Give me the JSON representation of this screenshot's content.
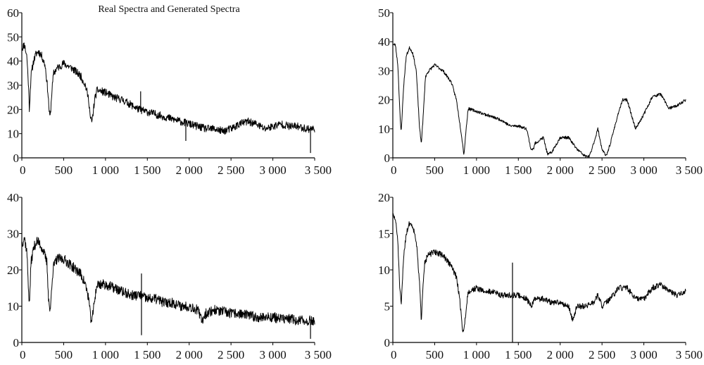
{
  "title": "Real Spectra and Generated Spectra",
  "chart_data": [
    {
      "type": "line",
      "panel": "top-left",
      "xlim": [
        0,
        3500
      ],
      "ylim": [
        0,
        60
      ],
      "xticks": [
        0,
        500,
        1000,
        1500,
        2000,
        2500,
        3000,
        3500
      ],
      "xtick_labels": [
        "0",
        "500",
        "1 000",
        "1 500",
        "2 000",
        "2 500",
        "3 000",
        "3 500"
      ],
      "yticks": [
        0,
        10,
        20,
        30,
        40,
        50,
        60
      ],
      "ytick_labels": [
        "0",
        "10",
        "20",
        "30",
        "40",
        "50",
        "60"
      ],
      "noise": 1.6,
      "seed": 11,
      "series": [
        {
          "name": "",
          "x": [
            0,
            30,
            60,
            80,
            90,
            110,
            140,
            170,
            200,
            240,
            280,
            310,
            330,
            340,
            360,
            380,
            420,
            500,
            600,
            700,
            760,
            800,
            820,
            840,
            870,
            900,
            1000,
            1100,
            1200,
            1300,
            1400,
            1500,
            1600,
            1700,
            1800,
            1900,
            2000,
            2100,
            2200,
            2300,
            2400,
            2500,
            2600,
            2700,
            2800,
            2900,
            3000,
            3100,
            3200,
            3300,
            3400,
            3500
          ],
          "y": [
            45,
            47,
            42,
            30,
            20,
            34,
            40,
            43,
            44,
            42,
            38,
            28,
            18,
            17,
            28,
            35,
            37,
            39,
            37,
            34,
            30,
            24,
            16,
            15,
            24,
            28,
            27,
            25,
            24,
            22,
            20,
            19,
            18,
            17,
            16,
            15,
            14,
            13,
            12,
            12,
            11,
            12,
            14,
            15,
            14,
            12,
            13,
            14,
            13,
            13,
            12,
            12
          ]
        }
      ],
      "spikes": [
        {
          "x": 1420,
          "y": 27.5
        },
        {
          "x": 1960,
          "y": 7
        },
        {
          "x": 3450,
          "y": 2
        }
      ]
    },
    {
      "type": "line",
      "panel": "top-right",
      "xlim": [
        0,
        3500
      ],
      "ylim": [
        0,
        50
      ],
      "xticks": [
        0,
        500,
        1000,
        1500,
        2000,
        2500,
        3000,
        3500
      ],
      "xtick_labels": [
        "0",
        "500",
        "1 000",
        "1 500",
        "2 000",
        "2 500",
        "3 000",
        "3 500"
      ],
      "yticks": [
        0,
        10,
        20,
        30,
        40,
        50
      ],
      "ytick_labels": [
        "0",
        "10",
        "20",
        "30",
        "40",
        "50"
      ],
      "noise": 0.5,
      "seed": 23,
      "series": [
        {
          "name": "",
          "x": [
            0,
            30,
            60,
            90,
            100,
            130,
            160,
            200,
            240,
            280,
            320,
            340,
            360,
            390,
            430,
            500,
            600,
            700,
            760,
            820,
            850,
            870,
            900,
            1000,
            1100,
            1200,
            1300,
            1400,
            1500,
            1600,
            1650,
            1680,
            1700,
            1800,
            1850,
            1900,
            2000,
            2100,
            2200,
            2300,
            2350,
            2400,
            2450,
            2500,
            2550,
            2600,
            2700,
            2750,
            2800,
            2900,
            3000,
            3100,
            3200,
            3300,
            3400,
            3500
          ],
          "y": [
            39,
            39,
            32,
            12,
            9,
            25,
            35,
            38,
            36,
            30,
            10,
            5,
            13,
            28,
            30,
            32,
            30,
            26,
            20,
            8,
            1,
            8,
            17,
            16,
            15,
            14,
            13,
            11,
            11,
            10,
            3,
            3,
            5,
            7,
            1,
            2,
            7,
            7,
            3,
            0.5,
            0.5,
            5,
            10,
            3,
            0.5,
            5,
            16,
            20,
            20,
            10,
            15,
            21,
            22,
            17,
            18,
            20
          ]
        }
      ],
      "spikes": []
    },
    {
      "type": "line",
      "panel": "bottom-left",
      "xlim": [
        0,
        3500
      ],
      "ylim": [
        0,
        40
      ],
      "xticks": [
        0,
        500,
        1000,
        1500,
        2000,
        2500,
        3000,
        3500
      ],
      "xtick_labels": [
        "0",
        "500",
        "1 000",
        "1 500",
        "2 000",
        "2 500",
        "3 000",
        "3 500"
      ],
      "yticks": [
        0,
        10,
        20,
        30,
        40
      ],
      "ytick_labels": [
        "0",
        "10",
        "20",
        "30",
        "40"
      ],
      "noise": 1.4,
      "seed": 37,
      "series": [
        {
          "name": "",
          "x": [
            0,
            30,
            60,
            80,
            90,
            110,
            140,
            180,
            220,
            260,
            300,
            320,
            340,
            360,
            380,
            420,
            500,
            600,
            700,
            760,
            800,
            820,
            840,
            870,
            900,
            1000,
            1100,
            1200,
            1300,
            1400,
            1500,
            1600,
            1700,
            1800,
            1900,
            2000,
            2100,
            2150,
            2200,
            2300,
            2400,
            2500,
            2600,
            2700,
            2800,
            2900,
            3000,
            3100,
            3200,
            3300,
            3400,
            3500
          ],
          "y": [
            27,
            29,
            25,
            15,
            10,
            22,
            26,
            28,
            27,
            25,
            22,
            12,
            8,
            17,
            21,
            23,
            23,
            21,
            19,
            16,
            12,
            7,
            6,
            12,
            16,
            16,
            15,
            14,
            13,
            13,
            12,
            12,
            11,
            11,
            10,
            10,
            9,
            6,
            8,
            9,
            8.5,
            8,
            8,
            7.5,
            7,
            7,
            7,
            6.5,
            6.5,
            6,
            6,
            6
          ]
        }
      ],
      "spikes": [
        {
          "x": 1430,
          "y": 19
        },
        {
          "x": 1430,
          "y": 2
        },
        {
          "x": 3450,
          "y": 1
        }
      ]
    },
    {
      "type": "line",
      "panel": "bottom-right",
      "xlim": [
        0,
        3500
      ],
      "ylim": [
        0,
        20
      ],
      "xticks": [
        0,
        500,
        1000,
        1500,
        2000,
        2500,
        3000,
        3500
      ],
      "xtick_labels": [
        "0",
        "500",
        "1 000",
        "1 500",
        "2 000",
        "2 500",
        "3 000",
        "3 500"
      ],
      "yticks": [
        0,
        5,
        10,
        15,
        20
      ],
      "ytick_labels": [
        "0",
        "5",
        "10",
        "15",
        "20"
      ],
      "noise": 0.4,
      "seed": 51,
      "series": [
        {
          "name": "",
          "x": [
            0,
            30,
            60,
            80,
            100,
            130,
            160,
            200,
            240,
            280,
            320,
            340,
            360,
            380,
            420,
            500,
            600,
            700,
            760,
            800,
            830,
            850,
            870,
            900,
            1000,
            1100,
            1200,
            1300,
            1400,
            1500,
            1600,
            1650,
            1700,
            1800,
            1900,
            2000,
            2100,
            2150,
            2200,
            2300,
            2400,
            2450,
            2500,
            2600,
            2700,
            2800,
            2900,
            3000,
            3100,
            3200,
            3300,
            3400,
            3500
          ],
          "y": [
            17.5,
            17,
            14,
            8,
            5,
            12,
            15,
            16.5,
            16,
            14,
            8,
            3,
            8,
            11,
            12,
            12.5,
            12,
            10.5,
            9,
            6,
            2,
            1.5,
            4,
            7,
            7.5,
            7,
            7,
            6.5,
            6.5,
            6.5,
            6,
            5,
            6,
            6,
            5.5,
            5.5,
            5,
            3,
            5,
            5,
            5.5,
            6.5,
            5,
            6,
            7.5,
            7.5,
            6,
            6,
            7.5,
            8,
            7,
            6.5,
            7
          ]
        }
      ],
      "spikes": [
        {
          "x": 1430,
          "y": 11
        },
        {
          "x": 1430,
          "y": 0
        }
      ]
    }
  ]
}
